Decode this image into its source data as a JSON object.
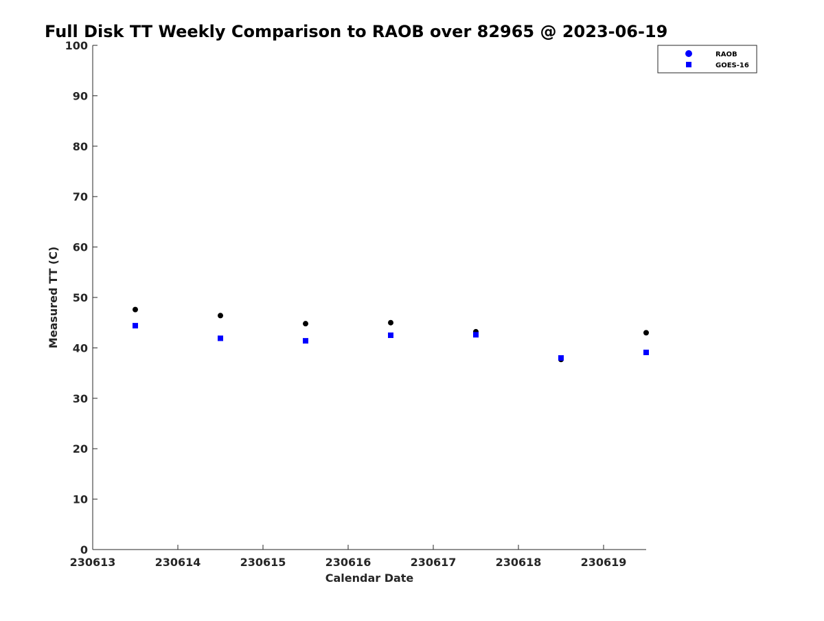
{
  "chart_data": {
    "type": "scatter",
    "title": "Full Disk TT Weekly Comparison to RAOB over 82965 @ 2023-06-19",
    "xlabel": "Calendar Date",
    "ylabel": "Measured TT (C)",
    "xlim": [
      "230613",
      "230619.5"
    ],
    "ylim": [
      0,
      100
    ],
    "x_ticks": [
      "230613",
      "230614",
      "230615",
      "230616",
      "230617",
      "230618",
      "230619"
    ],
    "y_ticks": [
      0,
      10,
      20,
      30,
      40,
      50,
      60,
      70,
      80,
      90,
      100
    ],
    "grid": false,
    "legend_position": "top-right outside",
    "x": [
      230613.5,
      230614.5,
      230615.5,
      230616.5,
      230617.5,
      230618.5,
      230619.5
    ],
    "series": [
      {
        "name": "RAOB",
        "marker": "circle",
        "color": "#000000",
        "legend_color": "#0000ff",
        "values": [
          47.6,
          46.4,
          44.8,
          45.0,
          43.2,
          37.7,
          43.0
        ]
      },
      {
        "name": "GOES-16",
        "marker": "square",
        "color": "#0000ff",
        "values": [
          44.4,
          41.9,
          41.4,
          42.5,
          42.6,
          38.0,
          39.1
        ]
      }
    ]
  }
}
